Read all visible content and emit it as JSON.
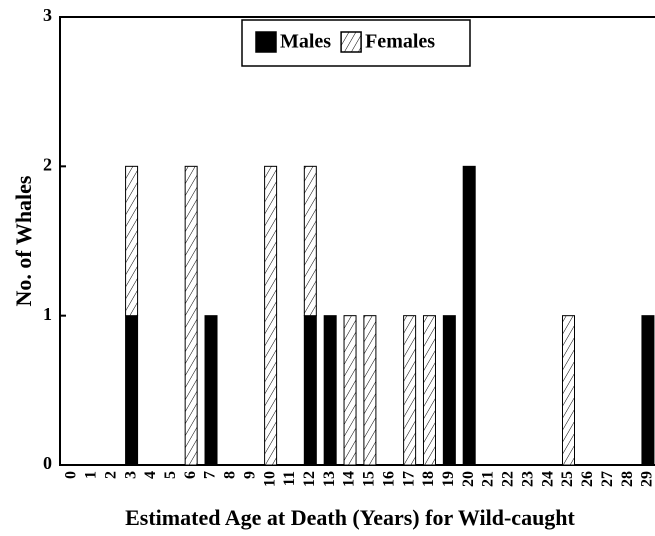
{
  "chart_data": {
    "type": "stacked_bar",
    "x_label": "Estimated Age at Death (Years) for Wild-caught",
    "y_label": "No. of Whales",
    "categories": [
      "0",
      "1",
      "2",
      "3",
      "4",
      "5",
      "6",
      "7",
      "8",
      "9",
      "10",
      "11",
      "12",
      "13",
      "14",
      "15",
      "16",
      "17",
      "18",
      "19",
      "20",
      "21",
      "22",
      "23",
      "24",
      "25",
      "26",
      "27",
      "28",
      "29"
    ],
    "series": [
      {
        "name": "Males",
        "color": "#000000",
        "hatch": false,
        "values": [
          0,
          0,
          0,
          1,
          0,
          0,
          0,
          1,
          0,
          0,
          0,
          0,
          1,
          1,
          0,
          0,
          0,
          0,
          0,
          1,
          2,
          0,
          0,
          0,
          0,
          0,
          0,
          0,
          0,
          1
        ]
      },
      {
        "name": "Females",
        "color": "#000000",
        "hatch": true,
        "values": [
          0,
          0,
          0,
          1,
          0,
          0,
          2,
          0,
          0,
          0,
          2,
          0,
          1,
          0,
          1,
          1,
          0,
          1,
          1,
          0,
          0,
          0,
          0,
          0,
          0,
          1,
          0,
          0,
          0,
          0
        ]
      }
    ],
    "ylim": [
      0,
      3
    ],
    "yticks": [
      0,
      1,
      2,
      3
    ],
    "legend": "top"
  }
}
